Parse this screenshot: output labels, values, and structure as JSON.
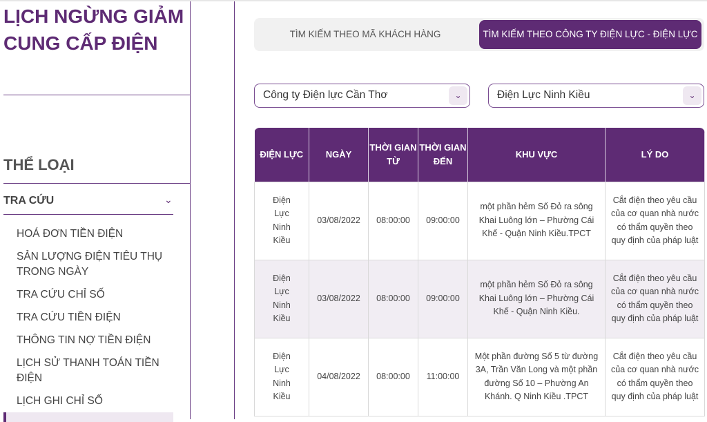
{
  "sidebar": {
    "title": "LỊCH NGỪNG GIẢM CUNG CẤP ĐIỆN",
    "category_heading": "THỂ LOẠI",
    "section": "TRA CỨU",
    "items": [
      "HOÁ ĐƠN TIỀN ĐIỆN",
      "SẢN LƯỢNG ĐIỆN TIÊU THỤ TRONG NGÀY",
      "TRA CỨU CHỈ SỐ",
      "TRA CỨU TIỀN ĐIỆN",
      "THÔNG TIN NỢ TIỀN ĐIỆN",
      "LỊCH SỬ THANH TOÁN TIỀN ĐIỆN",
      "LỊCH GHI CHỈ SỐ"
    ]
  },
  "tabs": [
    {
      "label": "TÌM KIẾM THEO MÃ KHÁCH HÀNG",
      "active": false
    },
    {
      "label": "TÌM KIẾM THEO CÔNG TY ĐIỆN LỰC - ĐIỆN LỰC",
      "active": true
    }
  ],
  "filters": {
    "company": "Công ty Điện lực Cần Thơ",
    "branch": "Điện Lực Ninh Kiều"
  },
  "table": {
    "headers": [
      "ĐIỆN LỰC",
      "NGÀY",
      "THỜI GIAN TỪ",
      "THỜI GIAN ĐẾN",
      "KHU VỰC",
      "LÝ DO"
    ],
    "rows": [
      [
        "Điện Lực Ninh Kiều",
        "03/08/2022",
        "08:00:00",
        "09:00:00",
        "một phần hẻm Số Đỏ ra sông Khai Luông lớn – Phường Cái Khế - Quận Ninh Kiều.TPCT",
        "Cắt điện theo yêu cầu của cơ quan nhà nước có thẩm quyền theo quy định của pháp luật"
      ],
      [
        "Điện Lực Ninh Kiều",
        "03/08/2022",
        "08:00:00",
        "09:00:00",
        "một phần hẻm Số Đỏ ra sông Khai Luông lớn – Phường Cái Khế - Quận Ninh Kiều.",
        "Cắt điện theo yêu cầu của cơ quan nhà nước có thẩm quyền theo quy định của pháp luật"
      ],
      [
        "Điện Lực Ninh Kiều",
        "04/08/2022",
        "08:00:00",
        "11:00:00",
        "Một phần đường Số 5 từ đường 3A, Trần Văn Long và một phần đường Số 10 – Phường An Khánh. Q Ninh Kiều .TPCT",
        "Cắt điện theo yêu cầu của cơ quan nhà nước có thẩm quyền theo quy định của pháp luật"
      ]
    ]
  },
  "colors": {
    "accent": "#5e2b74"
  }
}
